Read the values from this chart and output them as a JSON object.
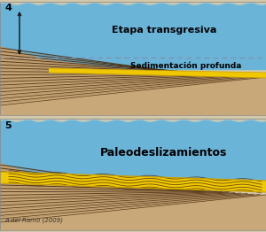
{
  "fig_width": 3.0,
  "fig_height": 2.62,
  "dpi": 100,
  "bg_color": "#d4c8a8",
  "water_color": "#6ab4d8",
  "water_top_color": "#a8d8ea",
  "yellow_color": "#f0c800",
  "yellow_dark": "#c8a000",
  "panel4_label": "4",
  "panel5_label": "5",
  "text_etapa": "Etapa transgresiva",
  "text_sediment": "Sedimentación profunda",
  "text_paleo": "Paleodeslizamientos",
  "text_credit": "A del Ramo (2009)",
  "font_size_main": 8,
  "font_size_label": 8,
  "font_size_credit": 5,
  "dashed_line_color": "#888899",
  "arrow_color": "#111111",
  "strata_dark": "#4a2e10",
  "strata_mid": "#8a6040",
  "sand_color": "#c8a878",
  "sand_dark": "#b89060"
}
